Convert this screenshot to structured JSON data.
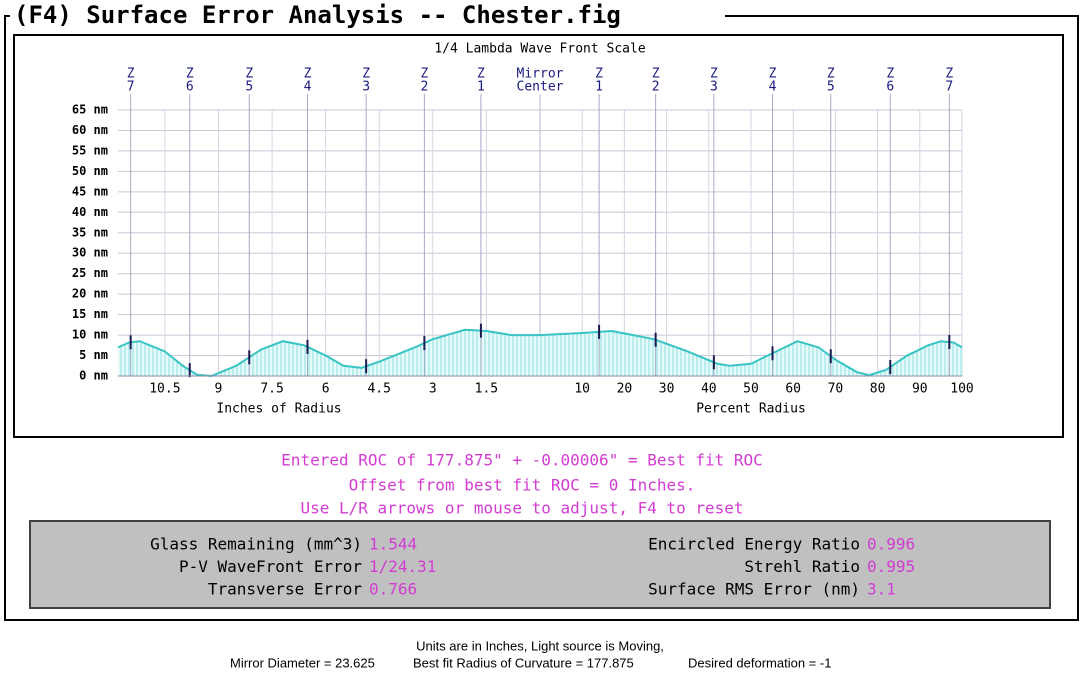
{
  "window": {
    "title": "(F4) Surface Error Analysis -- Chester.fig"
  },
  "chart_data": {
    "type": "area",
    "title": "1/4 Lambda Wave Front Scale",
    "center_label": [
      "Mirror",
      "Center"
    ],
    "zone_prefix": "Z",
    "zones": {
      "labels": [
        "1",
        "2",
        "3",
        "4",
        "5",
        "6",
        "7"
      ],
      "radius_pct": [
        14,
        27.4,
        41.2,
        55.1,
        68.9,
        83,
        97
      ]
    },
    "ylim": [
      0,
      65
    ],
    "yticks": [
      {
        "value": 0,
        "label": "0 nm"
      },
      {
        "value": 5,
        "label": "5 nm"
      },
      {
        "value": 10,
        "label": "10 nm"
      },
      {
        "value": 15,
        "label": "15 nm"
      },
      {
        "value": 20,
        "label": "20 nm"
      },
      {
        "value": 25,
        "label": "25 nm"
      },
      {
        "value": 30,
        "label": "30 nm"
      },
      {
        "value": 35,
        "label": "35 nm"
      },
      {
        "value": 40,
        "label": "40 nm"
      },
      {
        "value": 45,
        "label": "45 nm"
      },
      {
        "value": 50,
        "label": "50 nm"
      },
      {
        "value": 55,
        "label": "55 nm"
      },
      {
        "value": 60,
        "label": "60 nm"
      },
      {
        "value": 65,
        "label": "65 nm"
      }
    ],
    "x_left": {
      "label": "Inches of Radius",
      "xlim": [
        11.8125,
        0
      ],
      "xticks": [
        10.5,
        9,
        7.5,
        6,
        4.5,
        3,
        1.5
      ]
    },
    "x_right": {
      "label": "Percent Radius",
      "xlim": [
        0,
        100
      ],
      "xticks": [
        10,
        20,
        30,
        40,
        50,
        60,
        70,
        80,
        90,
        100
      ]
    },
    "color": "#38c4c4",
    "grid": true,
    "left_profile": {
      "x": [
        11.8125,
        11.5,
        11.2,
        10.5,
        10,
        9.6,
        9.2,
        8.5,
        7.8,
        7.2,
        6.6,
        6,
        5.5,
        5,
        4.5,
        3.5,
        3,
        2.1,
        1.5,
        0.8,
        0
      ],
      "values": [
        7,
        8.2,
        8.5,
        6,
        2.5,
        0.3,
        0,
        2.5,
        6.5,
        8.5,
        7.5,
        5,
        2.5,
        2,
        3.5,
        7,
        9,
        11.3,
        11,
        10,
        10
      ]
    },
    "right_profile": {
      "x": [
        0,
        10,
        17,
        27,
        35,
        42,
        45,
        50,
        55,
        61,
        66,
        70,
        75,
        78,
        82,
        87,
        92,
        95,
        98,
        100
      ],
      "values": [
        10,
        10.5,
        11,
        9,
        6,
        3,
        2.5,
        3,
        5.5,
        8.5,
        7,
        4,
        1,
        0.2,
        1.5,
        5,
        7.5,
        8.5,
        8.2,
        7
      ]
    }
  },
  "messages": [
    "Entered ROC of 177.875\" + -0.00006\" = Best fit ROC",
    "Offset from best fit ROC = 0 Inches.",
    "Use L/R arrows or mouse to adjust, F4 to reset"
  ],
  "stats": {
    "left": [
      {
        "label": "Glass Remaining (mm^3)",
        "value": "1.544"
      },
      {
        "label": "P-V WaveFront Error",
        "value": "1/24.31"
      },
      {
        "label": "Transverse Error",
        "value": "0.766"
      }
    ],
    "right": [
      {
        "label": "Encircled Energy Ratio",
        "value": "0.996"
      },
      {
        "label": "Strehl Ratio",
        "value": "0.995"
      },
      {
        "label": "Surface RMS Error (nm)",
        "value": "3.1"
      }
    ]
  },
  "footer": {
    "line1": "Units are in Inches, Light source is Moving,",
    "line2": [
      "Mirror Diameter = 23.625",
      "Best fit Radius of Curvature = 177.875",
      "Desired deformation = -1"
    ]
  }
}
